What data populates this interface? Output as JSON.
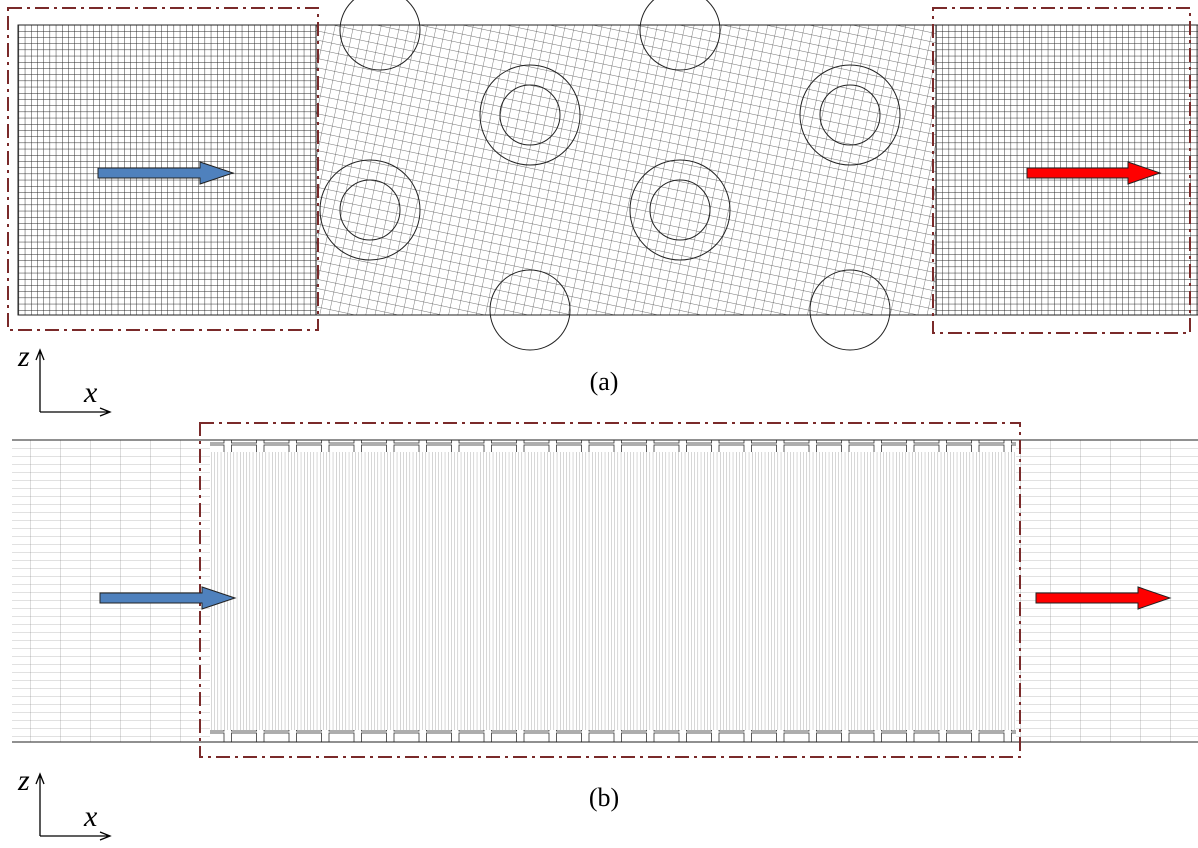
{
  "panels": [
    {
      "label": "(a)",
      "axes": {
        "vertical": "z",
        "horizontal": "x"
      }
    },
    {
      "label": "(b)",
      "axes": {
        "vertical": "z",
        "horizontal": "x"
      }
    }
  ]
}
